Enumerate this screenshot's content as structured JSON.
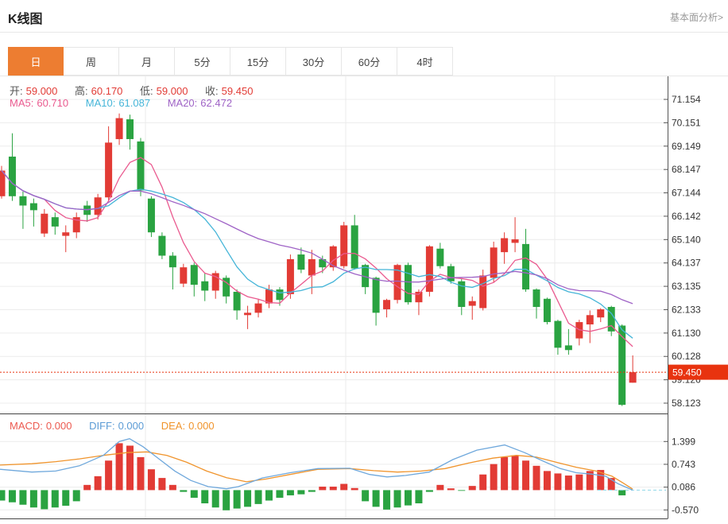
{
  "header": {
    "title": "K线图",
    "link": "基本面分析>"
  },
  "tabs": {
    "items": [
      "日",
      "周",
      "月",
      "5分",
      "15分",
      "30分",
      "60分",
      "4时"
    ],
    "active_index": 0
  },
  "ohlc": {
    "open_label": "开:",
    "open": "59.000",
    "high_label": "高:",
    "high": "60.170",
    "low_label": "低:",
    "low": "59.000",
    "close_label": "收:",
    "close": "59.450"
  },
  "ma": {
    "ma5_label": "MA5:",
    "ma5": "60.710",
    "ma10_label": "MA10:",
    "ma10": "61.087",
    "ma20_label": "MA20:",
    "ma20": "62.472"
  },
  "macd_header": {
    "macd_label": "MACD:",
    "macd": "0.000",
    "diff_label": "DIFF:",
    "diff": "0.000",
    "dea_label": "DEA:",
    "dea": "0.000"
  },
  "price_marker": {
    "text": "59.450",
    "value": 59.45
  },
  "colors": {
    "accent_orange": "#ed7d31",
    "up_red": "#e23b35",
    "down_green": "#2aa341",
    "ma5_pink": "#ea5a8f",
    "ma10_cyan": "#45b5d8",
    "ma20_purple": "#9f63c6",
    "diff_blue": "#6fa8dc",
    "dea_orange": "#f0942c",
    "badge_red": "#e8330f",
    "grid": "#ececec",
    "axis": "#555555"
  },
  "chart_data": [
    {
      "type": "candlestick",
      "panel": "main",
      "interval": "daily",
      "y_axis_labels": [
        "71.154",
        "70.151",
        "69.149",
        "68.147",
        "67.144",
        "66.142",
        "65.140",
        "64.137",
        "63.135",
        "62.133",
        "61.130",
        "60.128",
        "59.126",
        "58.123"
      ],
      "y_top_value": 71.154,
      "y_bottom_value": 58.123,
      "vertical_gridlines_x": [
        183,
        435,
        698
      ],
      "current_price": 59.45,
      "ma_periods": [
        5,
        10,
        20
      ],
      "candles_format": [
        "open",
        "high",
        "low",
        "close"
      ],
      "candles": [
        [
          67.0,
          68.3,
          66.9,
          68.1
        ],
        [
          68.7,
          69.7,
          66.8,
          67.0
        ],
        [
          67.0,
          67.2,
          65.6,
          66.6
        ],
        [
          66.7,
          66.9,
          65.7,
          66.4
        ],
        [
          65.4,
          66.45,
          65.25,
          66.25
        ],
        [
          66.1,
          66.3,
          65.35,
          65.7
        ],
        [
          65.3,
          65.75,
          64.6,
          65.45
        ],
        [
          65.45,
          66.3,
          65.2,
          66.1
        ],
        [
          66.6,
          66.8,
          65.9,
          66.2
        ],
        [
          66.2,
          67.1,
          66.0,
          66.95
        ],
        [
          66.95,
          70.0,
          66.8,
          69.3
        ],
        [
          69.45,
          70.55,
          69.2,
          70.35
        ],
        [
          70.3,
          70.5,
          69.0,
          69.45
        ],
        [
          69.35,
          69.5,
          67.0,
          67.25
        ],
        [
          66.9,
          67.0,
          65.25,
          65.45
        ],
        [
          65.3,
          65.45,
          64.3,
          64.45
        ],
        [
          64.45,
          64.6,
          63.0,
          63.95
        ],
        [
          63.25,
          64.1,
          63.1,
          63.95
        ],
        [
          64.05,
          64.15,
          62.7,
          63.2
        ],
        [
          63.35,
          63.7,
          62.5,
          62.95
        ],
        [
          62.95,
          63.8,
          62.6,
          63.7
        ],
        [
          63.5,
          63.6,
          62.4,
          62.7
        ],
        [
          62.9,
          63.0,
          61.7,
          62.1
        ],
        [
          61.9,
          62.3,
          61.3,
          62.0
        ],
        [
          62.0,
          62.6,
          61.8,
          62.4
        ],
        [
          62.4,
          63.2,
          62.2,
          63.0
        ],
        [
          63.0,
          63.1,
          62.3,
          62.55
        ],
        [
          62.8,
          64.5,
          62.6,
          64.3
        ],
        [
          64.5,
          64.8,
          63.7,
          63.85
        ],
        [
          63.6,
          64.7,
          62.8,
          64.3
        ],
        [
          64.3,
          64.45,
          63.7,
          63.95
        ],
        [
          63.95,
          64.9,
          63.8,
          64.85
        ],
        [
          64.0,
          65.9,
          63.9,
          65.75
        ],
        [
          65.75,
          66.2,
          63.85,
          63.9
        ],
        [
          64.05,
          64.1,
          62.8,
          63.1
        ],
        [
          63.5,
          63.55,
          61.45,
          62.0
        ],
        [
          62.15,
          62.6,
          61.8,
          62.55
        ],
        [
          62.55,
          64.1,
          62.4,
          64.05
        ],
        [
          64.05,
          64.15,
          62.35,
          62.45
        ],
        [
          62.45,
          63.0,
          61.9,
          62.9
        ],
        [
          62.9,
          64.9,
          62.7,
          64.85
        ],
        [
          64.75,
          65.0,
          63.9,
          64.0
        ],
        [
          64.0,
          64.1,
          63.25,
          63.35
        ],
        [
          63.35,
          63.45,
          61.9,
          62.25
        ],
        [
          62.3,
          62.7,
          61.7,
          62.5
        ],
        [
          62.2,
          63.85,
          62.1,
          63.6
        ],
        [
          63.5,
          65.05,
          63.3,
          64.8
        ],
        [
          64.6,
          65.45,
          64.1,
          65.2
        ],
        [
          65.0,
          66.1,
          64.6,
          65.15
        ],
        [
          64.95,
          65.6,
          62.9,
          63.0
        ],
        [
          63.0,
          63.05,
          61.75,
          62.25
        ],
        [
          62.6,
          62.65,
          61.5,
          61.6
        ],
        [
          61.65,
          61.7,
          60.2,
          60.5
        ],
        [
          60.6,
          61.3,
          60.2,
          60.4
        ],
        [
          60.9,
          61.7,
          60.6,
          61.6
        ],
        [
          61.5,
          62.1,
          60.7,
          61.9
        ],
        [
          61.8,
          62.2,
          61.6,
          62.15
        ],
        [
          62.25,
          62.3,
          61.0,
          61.2
        ],
        [
          61.45,
          61.5,
          58.0,
          58.05
        ],
        [
          59.0,
          60.17,
          59.0,
          59.45
        ]
      ]
    },
    {
      "type": "macd",
      "panel": "sub",
      "y_axis_labels": [
        "1.399",
        "0.743",
        "0.086",
        "-0.570"
      ],
      "histogram": [
        -0.3,
        -0.35,
        -0.42,
        -0.5,
        -0.55,
        -0.5,
        -0.45,
        -0.32,
        0.15,
        0.4,
        0.85,
        1.35,
        1.28,
        0.95,
        0.6,
        0.35,
        0.15,
        -0.05,
        -0.22,
        -0.38,
        -0.5,
        -0.58,
        -0.53,
        -0.48,
        -0.4,
        -0.3,
        -0.22,
        -0.15,
        -0.12,
        -0.05,
        0.1,
        0.1,
        0.18,
        0.06,
        -0.32,
        -0.48,
        -0.56,
        -0.5,
        -0.44,
        -0.38,
        -0.05,
        0.15,
        0.05,
        -0.02,
        0.12,
        0.45,
        0.75,
        0.95,
        1.0,
        0.85,
        0.7,
        0.55,
        0.48,
        0.42,
        0.45,
        0.55,
        0.58,
        0.35,
        -0.15,
        0.0
      ],
      "diff_line": [
        [
          0,
          0.6
        ],
        [
          40,
          0.52
        ],
        [
          70,
          0.55
        ],
        [
          100,
          0.7
        ],
        [
          130,
          1.0
        ],
        [
          150,
          1.4
        ],
        [
          163,
          1.48
        ],
        [
          180,
          1.25
        ],
        [
          200,
          0.9
        ],
        [
          220,
          0.55
        ],
        [
          240,
          0.28
        ],
        [
          262,
          0.1
        ],
        [
          285,
          0.04
        ],
        [
          300,
          0.1
        ],
        [
          330,
          0.35
        ],
        [
          365,
          0.5
        ],
        [
          400,
          0.62
        ],
        [
          440,
          0.63
        ],
        [
          465,
          0.45
        ],
        [
          487,
          0.38
        ],
        [
          510,
          0.42
        ],
        [
          540,
          0.52
        ],
        [
          570,
          0.88
        ],
        [
          600,
          1.15
        ],
        [
          635,
          1.3
        ],
        [
          660,
          1.08
        ],
        [
          685,
          0.82
        ],
        [
          705,
          0.62
        ],
        [
          725,
          0.5
        ],
        [
          745,
          0.46
        ],
        [
          762,
          0.4
        ],
        [
          778,
          0.18
        ],
        [
          796,
          0.0
        ]
      ],
      "dea_line": [
        [
          0,
          0.72
        ],
        [
          40,
          0.76
        ],
        [
          70,
          0.82
        ],
        [
          100,
          0.9
        ],
        [
          130,
          1.0
        ],
        [
          160,
          1.08
        ],
        [
          185,
          1.1
        ],
        [
          210,
          1.0
        ],
        [
          235,
          0.8
        ],
        [
          260,
          0.55
        ],
        [
          285,
          0.36
        ],
        [
          310,
          0.24
        ],
        [
          335,
          0.32
        ],
        [
          365,
          0.45
        ],
        [
          400,
          0.6
        ],
        [
          440,
          0.62
        ],
        [
          470,
          0.56
        ],
        [
          500,
          0.52
        ],
        [
          530,
          0.55
        ],
        [
          560,
          0.62
        ],
        [
          590,
          0.78
        ],
        [
          620,
          0.92
        ],
        [
          650,
          1.0
        ],
        [
          675,
          0.95
        ],
        [
          700,
          0.8
        ],
        [
          725,
          0.66
        ],
        [
          750,
          0.55
        ],
        [
          770,
          0.4
        ],
        [
          783,
          0.22
        ],
        [
          796,
          0.03
        ]
      ]
    }
  ]
}
